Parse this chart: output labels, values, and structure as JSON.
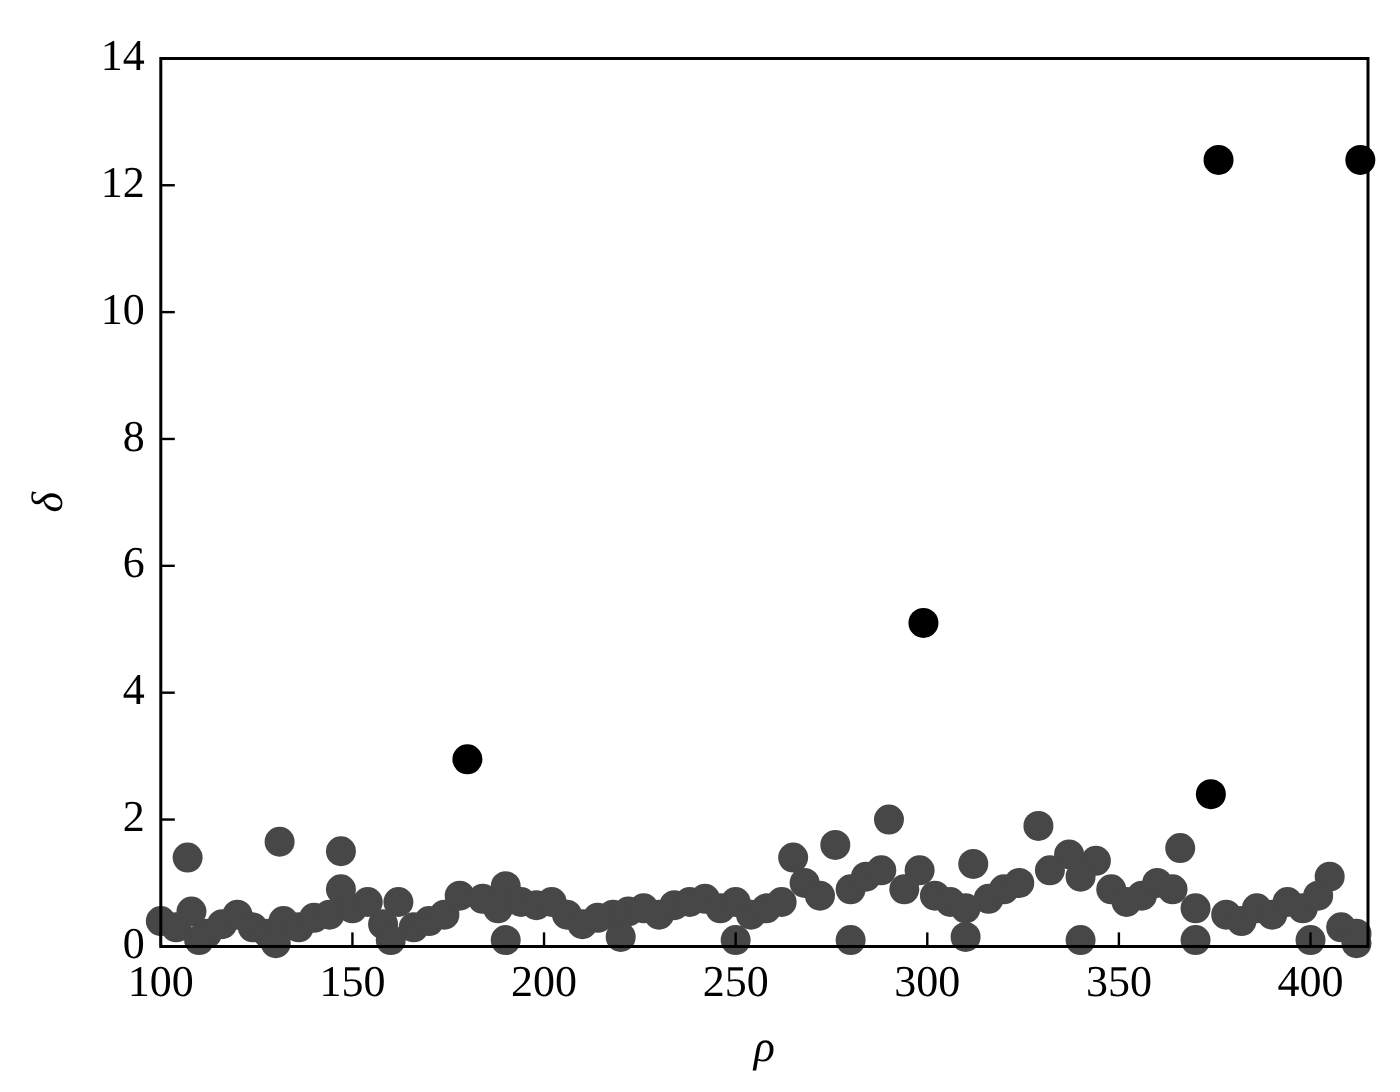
{
  "chart_data": {
    "type": "scatter",
    "xlabel": "ρ",
    "ylabel": "δ",
    "xlim": [
      100,
      415
    ],
    "ylim": [
      0,
      14
    ],
    "xticks": [
      100,
      150,
      200,
      250,
      300,
      350,
      400
    ],
    "yticks": [
      0,
      2,
      4,
      6,
      8,
      10,
      12,
      14
    ],
    "grid": false,
    "legend": false,
    "marker": "circle",
    "series": [
      {
        "color": "#474747",
        "x": [
          107,
          131,
          147,
          147,
          162,
          190,
          265,
          276,
          290,
          298,
          312,
          329,
          337,
          344,
          366,
          405,
          100,
          104,
          108,
          112,
          116,
          120,
          124,
          128,
          132,
          136,
          140,
          144,
          150,
          154,
          158,
          166,
          170,
          174,
          178,
          184,
          188,
          194,
          198,
          202,
          206,
          210,
          214,
          218,
          222,
          226,
          230,
          234,
          238,
          242,
          246,
          250,
          254,
          258,
          262,
          268,
          272,
          280,
          284,
          288,
          294,
          302,
          306,
          310,
          316,
          320,
          324,
          332,
          340,
          348,
          352,
          356,
          360,
          364,
          370,
          378,
          382,
          386,
          390,
          394,
          398,
          402,
          408,
          412,
          110,
          130,
          160,
          190,
          220,
          250,
          280,
          310,
          340,
          370,
          400,
          412
        ],
        "values": [
          1.4,
          1.65,
          1.5,
          0.9,
          0.7,
          0.95,
          1.4,
          1.6,
          2.0,
          1.2,
          1.3,
          1.9,
          1.45,
          1.35,
          1.55,
          1.1,
          0.4,
          0.3,
          0.55,
          0.2,
          0.35,
          0.5,
          0.3,
          0.2,
          0.4,
          0.3,
          0.45,
          0.5,
          0.6,
          0.7,
          0.35,
          0.3,
          0.4,
          0.5,
          0.8,
          0.75,
          0.6,
          0.7,
          0.65,
          0.7,
          0.5,
          0.35,
          0.45,
          0.5,
          0.55,
          0.6,
          0.5,
          0.65,
          0.7,
          0.75,
          0.6,
          0.7,
          0.5,
          0.6,
          0.7,
          1.0,
          0.8,
          0.9,
          1.1,
          1.2,
          0.9,
          0.8,
          0.7,
          0.6,
          0.75,
          0.9,
          1.0,
          1.2,
          1.1,
          0.9,
          0.7,
          0.8,
          1.0,
          0.9,
          0.6,
          0.5,
          0.4,
          0.6,
          0.5,
          0.7,
          0.6,
          0.8,
          0.3,
          0.2,
          0.1,
          0.05,
          0.1,
          0.1,
          0.15,
          0.1,
          0.1,
          0.15,
          0.1,
          0.1,
          0.1,
          0.05
        ]
      },
      {
        "color": "#000000",
        "x": [
          180,
          299,
          374,
          376,
          413
        ],
        "values": [
          2.95,
          5.1,
          2.4,
          12.4,
          12.4
        ]
      }
    ]
  }
}
